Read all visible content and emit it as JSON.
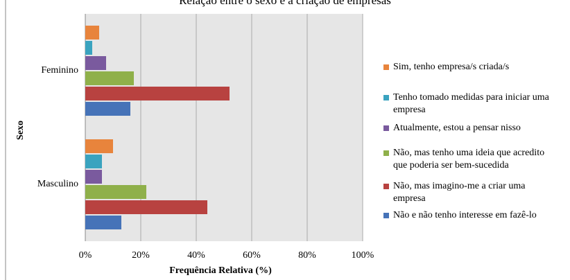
{
  "chart_data": {
    "type": "barh",
    "title": "Relação entre o sexo e a criação de empresas",
    "xlabel": "Frequência Relativa (%)",
    "ylabel": "Sexo",
    "categories": [
      "Feminino",
      "Masculino"
    ],
    "series": [
      {
        "name": "Sim, tenho empresa/s criada/s",
        "color": "#e8843c",
        "values": [
          5,
          10
        ]
      },
      {
        "name": "Tenho tomado medidas para iniciar uma empresa",
        "color": "#3aa3bf",
        "values": [
          2.5,
          6
        ]
      },
      {
        "name": "Atualmente, estou a pensar nisso",
        "color": "#7a5a9e",
        "values": [
          7.5,
          6
        ]
      },
      {
        "name": "Não, mas tenho uma ideia que acredito que poderia ser bem-sucedida",
        "color": "#8fb04a",
        "values": [
          17.5,
          22
        ]
      },
      {
        "name": "Não, mas imagino-me a criar uma empresa",
        "color": "#b84240",
        "values": [
          52,
          44
        ]
      },
      {
        "name": "Não e não tenho interesse em fazê-lo",
        "color": "#4673b8",
        "values": [
          16.25,
          13
        ]
      }
    ],
    "xlim": [
      0,
      100
    ],
    "xticks": [
      {
        "value": 0,
        "label": "0%"
      },
      {
        "value": 20,
        "label": "20%"
      },
      {
        "value": 40,
        "label": "40%"
      },
      {
        "value": 60,
        "label": "60%"
      },
      {
        "value": 80,
        "label": "80%"
      },
      {
        "value": 100,
        "label": "100%"
      }
    ],
    "grid": true
  }
}
